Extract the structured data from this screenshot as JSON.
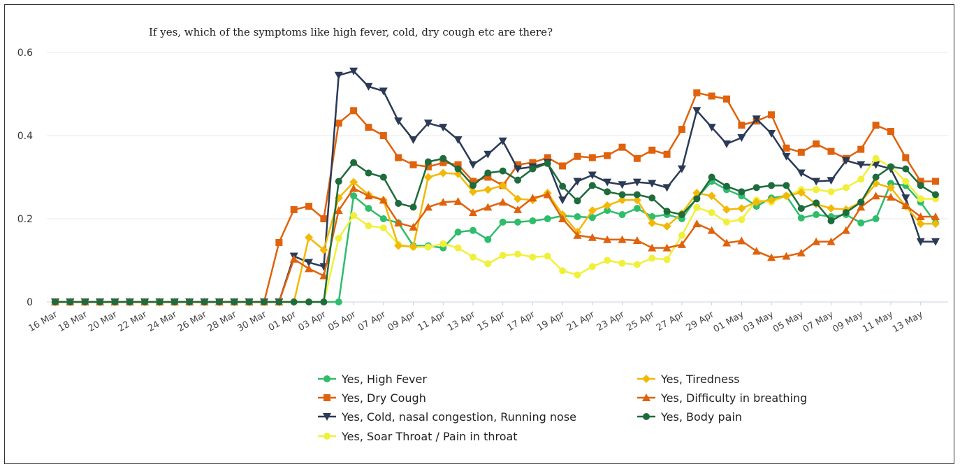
{
  "chart_data": {
    "type": "line",
    "title": "If yes, which of the symptoms like high fever, cold, dry cough etc are there?",
    "xlabel": "",
    "ylabel": "",
    "ylim": [
      0,
      0.6
    ],
    "y_ticks": [
      0,
      0.2,
      0.4,
      0.6
    ],
    "y_tick_labels": [
      "0",
      "0.2",
      "0.4",
      "0.6"
    ],
    "grid": true,
    "legend_position": "bottom",
    "x": [
      "16 Mar",
      "17 Mar",
      "18 Mar",
      "19 Mar",
      "20 Mar",
      "21 Mar",
      "22 Mar",
      "23 Mar",
      "24 Mar",
      "25 Mar",
      "26 Mar",
      "27 Mar",
      "28 Mar",
      "29 Mar",
      "30 Mar",
      "31 Mar",
      "01 Apr",
      "02 Apr",
      "03 Apr",
      "04 Apr",
      "05 Apr",
      "06 Apr",
      "07 Apr",
      "08 Apr",
      "09 Apr",
      "10 Apr",
      "11 Apr",
      "12 Apr",
      "13 Apr",
      "14 Apr",
      "15 Apr",
      "16 Apr",
      "17 Apr",
      "18 Apr",
      "19 Apr",
      "20 Apr",
      "21 Apr",
      "22 Apr",
      "23 Apr",
      "24 Apr",
      "25 Apr",
      "26 Apr",
      "27 Apr",
      "28 Apr",
      "29 Apr",
      "30 Apr",
      "01 May",
      "02 May",
      "03 May",
      "04 May",
      "05 May",
      "06 May",
      "07 May",
      "08 May",
      "09 May",
      "10 May",
      "11 May",
      "12 May",
      "13 May",
      "14 May"
    ],
    "x_tick_labels": [
      "16 Mar",
      "18 Mar",
      "20 Mar",
      "22 Mar",
      "24 Mar",
      "26 Mar",
      "28 Mar",
      "30 Mar",
      "01 Apr",
      "03 Apr",
      "05 Apr",
      "07 Apr",
      "09 Apr",
      "11 Apr",
      "13 Apr",
      "15 Apr",
      "17 Apr",
      "19 Apr",
      "21 Apr",
      "23 Apr",
      "25 Apr",
      "27 Apr",
      "29 Apr",
      "01 May",
      "03 May",
      "05 May",
      "07 May",
      "09 May",
      "11 May",
      "13 May"
    ],
    "series": [
      {
        "name": "Yes, High Fever",
        "color": "#2ebd6b",
        "marker": "circle",
        "values": [
          0,
          0,
          0,
          0,
          0,
          0,
          0,
          0,
          0,
          0,
          0,
          0,
          0,
          0,
          0,
          0,
          0,
          0,
          0,
          0,
          0.255,
          0.225,
          0.2,
          0.19,
          0.135,
          0.135,
          0.13,
          0.168,
          0.172,
          0.15,
          0.192,
          0.192,
          0.195,
          0.2,
          0.207,
          0.205,
          0.203,
          0.22,
          0.21,
          0.225,
          0.205,
          0.21,
          0.2,
          0.25,
          0.29,
          0.27,
          0.255,
          0.23,
          0.25,
          0.255,
          0.202,
          0.21,
          0.205,
          0.21,
          0.19,
          0.2,
          0.285,
          0.28,
          0.24,
          0.19
        ]
      },
      {
        "name": "Yes, Dry Cough",
        "color": "#e0620d",
        "marker": "square",
        "values": [
          0,
          0,
          0,
          0,
          0,
          0,
          0,
          0,
          0,
          0,
          0,
          0,
          0,
          0,
          0,
          0.143,
          0.222,
          0.23,
          0.2,
          0.43,
          0.46,
          0.42,
          0.4,
          0.347,
          0.33,
          0.325,
          0.335,
          0.33,
          0.29,
          0.3,
          0.28,
          0.33,
          0.335,
          0.347,
          0.327,
          0.35,
          0.347,
          0.352,
          0.372,
          0.345,
          0.365,
          0.355,
          0.415,
          0.503,
          0.495,
          0.488,
          0.425,
          0.435,
          0.45,
          0.37,
          0.36,
          0.38,
          0.362,
          0.345,
          0.367,
          0.425,
          0.41,
          0.347,
          0.29,
          0.29
        ]
      },
      {
        "name": "Yes, Cold, nasal congestion, Running nose",
        "color": "#2b3a55",
        "marker": "triangle-down",
        "values": [
          0,
          0,
          0,
          0,
          0,
          0,
          0,
          0,
          0,
          0,
          0,
          0,
          0,
          0,
          0,
          0,
          0.11,
          0.095,
          0.085,
          0.545,
          0.555,
          0.518,
          0.507,
          0.435,
          0.39,
          0.43,
          0.42,
          0.39,
          0.33,
          0.355,
          0.387,
          0.32,
          0.325,
          0.335,
          0.245,
          0.29,
          0.305,
          0.288,
          0.282,
          0.288,
          0.285,
          0.275,
          0.32,
          0.46,
          0.42,
          0.38,
          0.395,
          0.44,
          0.405,
          0.35,
          0.31,
          0.29,
          0.292,
          0.34,
          0.33,
          0.33,
          0.32,
          0.25,
          0.145,
          0.145
        ]
      },
      {
        "name": "Yes, Soar Throat / Pain in throat",
        "color": "#f0f03c",
        "marker": "circle",
        "values": [
          0,
          0,
          0,
          0,
          0,
          0,
          0,
          0,
          0,
          0,
          0,
          0,
          0,
          0,
          0,
          0,
          0,
          0,
          0,
          0.153,
          0.208,
          0.183,
          0.178,
          0.138,
          0.132,
          0.132,
          0.14,
          0.13,
          0.108,
          0.092,
          0.112,
          0.115,
          0.108,
          0.11,
          0.075,
          0.065,
          0.085,
          0.1,
          0.093,
          0.09,
          0.105,
          0.102,
          0.16,
          0.227,
          0.215,
          0.192,
          0.198,
          0.245,
          0.24,
          0.255,
          0.27,
          0.27,
          0.265,
          0.275,
          0.295,
          0.345,
          0.325,
          0.29,
          0.248,
          0.248
        ]
      },
      {
        "name": "Yes, Tiredness",
        "color": "#f2b807",
        "marker": "diamond",
        "values": [
          0,
          0,
          0,
          0,
          0,
          0,
          0,
          0,
          0,
          0,
          0,
          0,
          0,
          0,
          0,
          0,
          0,
          0.155,
          0.125,
          0.25,
          0.288,
          0.258,
          0.245,
          0.135,
          0.133,
          0.3,
          0.31,
          0.308,
          0.265,
          0.27,
          0.28,
          0.248,
          0.245,
          0.262,
          0.21,
          0.168,
          0.22,
          0.232,
          0.245,
          0.245,
          0.19,
          0.182,
          0.213,
          0.262,
          0.255,
          0.222,
          0.225,
          0.24,
          0.245,
          0.255,
          0.263,
          0.235,
          0.225,
          0.222,
          0.24,
          0.285,
          0.275,
          0.23,
          0.188,
          0.188
        ]
      },
      {
        "name": "Yes, Difficulty in breathing",
        "color": "#e0620d",
        "marker": "triangle-up",
        "values": [
          0,
          0,
          0,
          0,
          0,
          0,
          0,
          0,
          0,
          0,
          0,
          0,
          0,
          0,
          0,
          0,
          0.103,
          0.08,
          0.063,
          0.22,
          0.273,
          0.255,
          0.245,
          0.19,
          0.18,
          0.228,
          0.24,
          0.242,
          0.215,
          0.228,
          0.24,
          0.222,
          0.25,
          0.258,
          0.2,
          0.16,
          0.155,
          0.15,
          0.15,
          0.148,
          0.13,
          0.13,
          0.138,
          0.188,
          0.172,
          0.142,
          0.147,
          0.122,
          0.107,
          0.11,
          0.118,
          0.145,
          0.145,
          0.172,
          0.228,
          0.255,
          0.252,
          0.232,
          0.205,
          0.205
        ]
      },
      {
        "name": "Yes, Body pain",
        "color": "#1e6b3b",
        "marker": "circle",
        "values": [
          0,
          0,
          0,
          0,
          0,
          0,
          0,
          0,
          0,
          0,
          0,
          0,
          0,
          0,
          0,
          0,
          0,
          0,
          0,
          0.29,
          0.335,
          0.31,
          0.3,
          0.237,
          0.228,
          0.337,
          0.345,
          0.32,
          0.28,
          0.31,
          0.315,
          0.293,
          0.32,
          0.333,
          0.278,
          0.243,
          0.28,
          0.265,
          0.258,
          0.258,
          0.25,
          0.218,
          0.21,
          0.248,
          0.3,
          0.278,
          0.265,
          0.275,
          0.28,
          0.28,
          0.225,
          0.238,
          0.195,
          0.215,
          0.24,
          0.3,
          0.325,
          0.32,
          0.28,
          0.258
        ]
      }
    ]
  }
}
